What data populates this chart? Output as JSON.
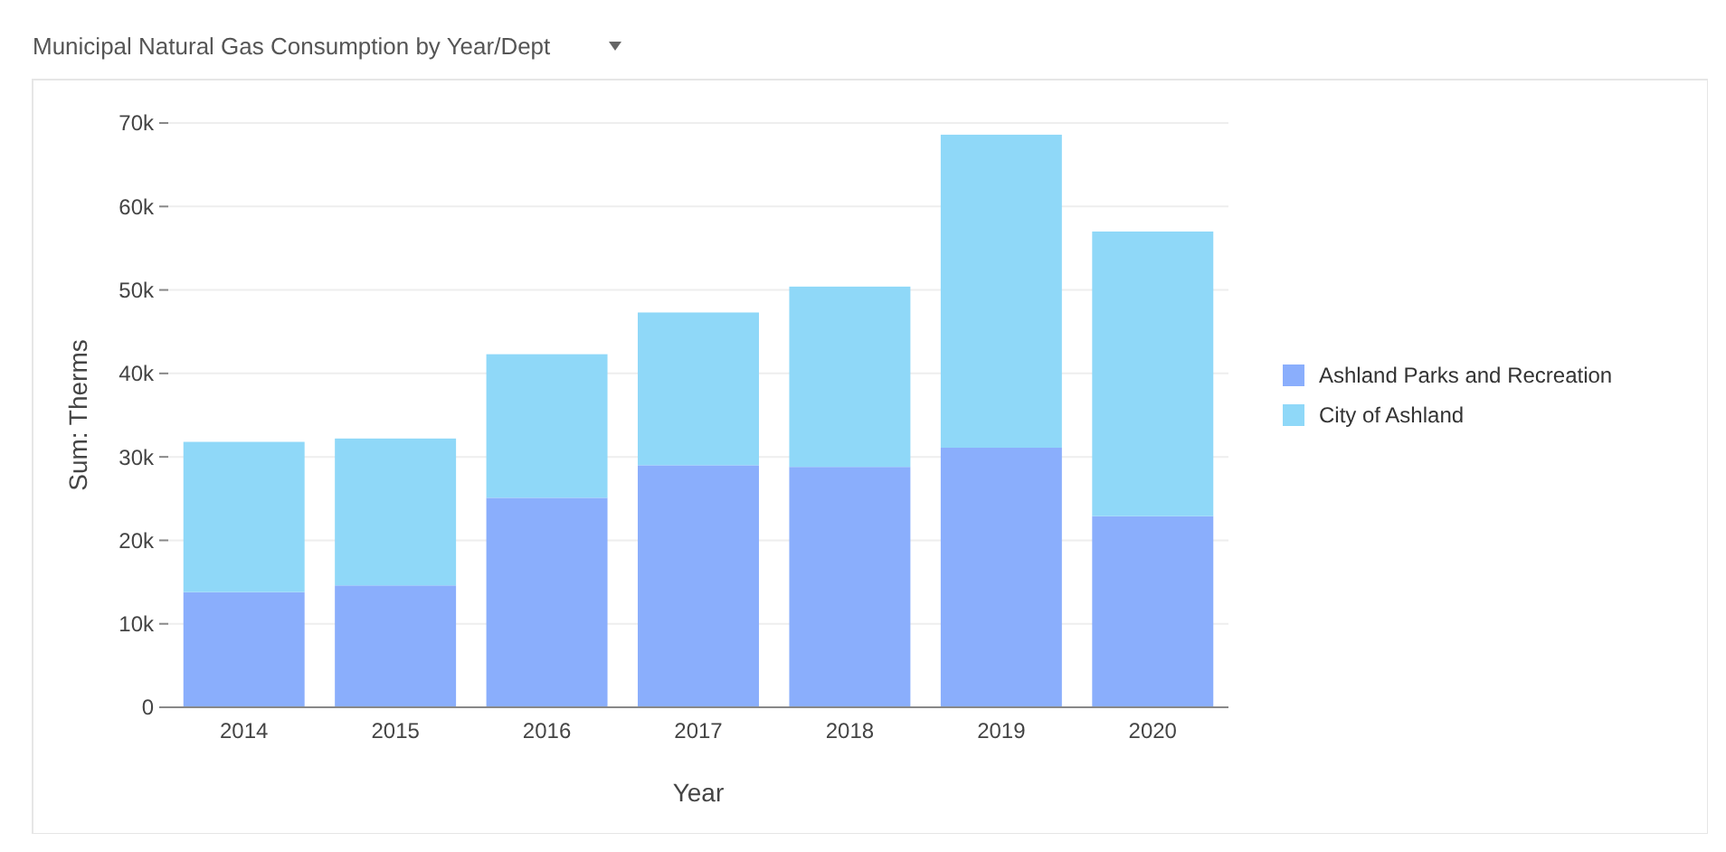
{
  "chart_data": {
    "type": "bar",
    "title": "Municipal Natural Gas Consumption by Year/Dept",
    "xlabel": "Year",
    "ylabel": "Sum: Therms",
    "categories": [
      "2014",
      "2015",
      "2016",
      "2017",
      "2018",
      "2019",
      "2020"
    ],
    "series": [
      {
        "name": "Ashland Parks and Recreation",
        "color": "#8aaefc",
        "values": [
          13800,
          14600,
          25100,
          29000,
          28800,
          31100,
          22900
        ]
      },
      {
        "name": "City of Ashland",
        "color": "#8fd8f8",
        "values": [
          18000,
          17600,
          17200,
          18300,
          21600,
          37500,
          34100
        ]
      }
    ],
    "stacked": true,
    "ylim": [
      0,
      70000
    ],
    "yticks": [
      0,
      {
        "value": 10000,
        "label": "10k"
      },
      {
        "value": 20000,
        "label": "20k"
      },
      {
        "value": 30000,
        "label": "30k"
      },
      {
        "value": 40000,
        "label": "40k"
      },
      {
        "value": 50000,
        "label": "50k"
      },
      {
        "value": 60000,
        "label": "60k"
      },
      {
        "value": 70000,
        "label": "70k"
      }
    ],
    "grid": "y",
    "legend": "right"
  }
}
